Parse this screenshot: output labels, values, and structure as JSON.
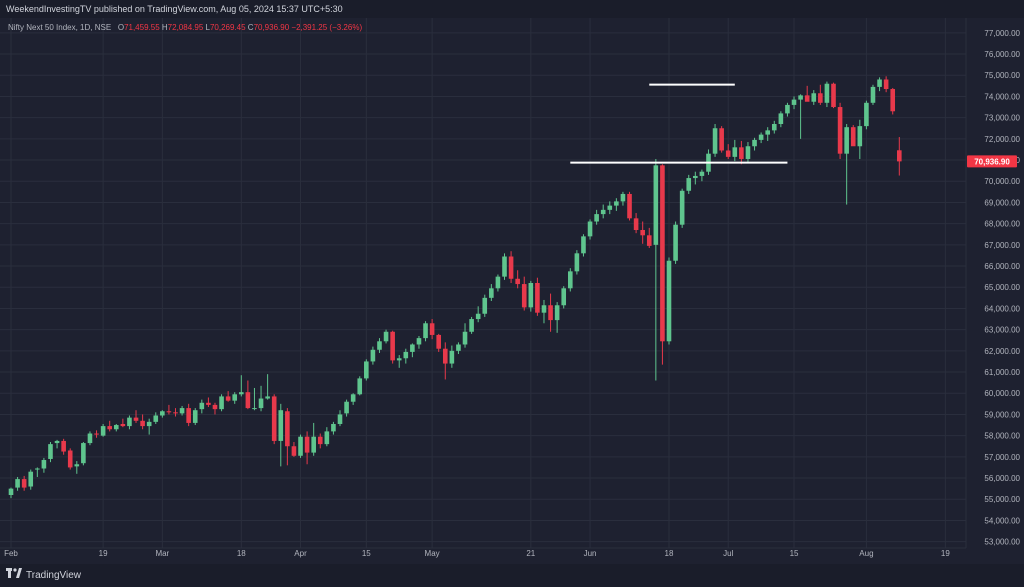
{
  "header": {
    "published_text": "WeekendInvestingTV published on TradingView.com, Aug 05, 2024 15:37 UTC+5:30"
  },
  "legend": {
    "symbol": "Nifty Next 50 Index, 1D, NSE",
    "open_label": "O",
    "open_value": "71,459.55",
    "high_label": "H",
    "high_value": "72,084.95",
    "low_label": "L",
    "low_value": "70,269.45",
    "close_label": "C",
    "close_value": "70,936.90",
    "change_value": "−2,391.25 (−3.26%)"
  },
  "footer": {
    "brand": "TradingView"
  },
  "colors": {
    "background": "#1e2130",
    "up": "#26a69a",
    "up_body": "#5fc58e",
    "down": "#f23645",
    "down_body": "#e8394b",
    "grid": "#2a2e3d",
    "axis_text": "#b2b5be",
    "price_tag": "#f23645",
    "drawing_lines": "#ffffff"
  },
  "chart_data": {
    "type": "candlestick",
    "y_axis_ticks": [
      "77,000.00",
      "76,000.00",
      "75,000.00",
      "74,000.00",
      "73,000.00",
      "72,000.00",
      "71,000.00",
      "70,000.00",
      "69,000.00",
      "68,000.00",
      "67,000.00",
      "66,000.00",
      "65,000.00",
      "64,000.00",
      "63,000.00",
      "62,000.00",
      "61,000.00",
      "60,000.00",
      "59,000.00",
      "58,000.00",
      "57,000.00",
      "56,000.00",
      "55,000.00",
      "54,000.00",
      "53,000.00"
    ],
    "x_axis_ticks": [
      "Feb",
      "19",
      "Mar",
      "18",
      "Apr",
      "15",
      "May",
      "21",
      "Jun",
      "18",
      "Jul",
      "15",
      "Aug",
      "19"
    ],
    "ylim": [
      52700,
      77700
    ],
    "last_price_label": "70,936.90",
    "last_price": 70936.9,
    "horizontal_lines": [
      {
        "price": 74560,
        "from_index": 97,
        "to_index": 110
      },
      {
        "price": 70880,
        "from_index": 85,
        "to_index": 118
      }
    ],
    "ohlc": [
      [
        55200,
        55550,
        55050,
        55500
      ],
      [
        55550,
        56050,
        55400,
        55950
      ],
      [
        55950,
        56100,
        55400,
        55550
      ],
      [
        55600,
        56400,
        55450,
        56300
      ],
      [
        56400,
        56500,
        56050,
        56450
      ],
      [
        56450,
        56950,
        56250,
        56850
      ],
      [
        56900,
        57700,
        56750,
        57600
      ],
      [
        57650,
        57800,
        57400,
        57750
      ],
      [
        57750,
        57850,
        57100,
        57250
      ],
      [
        57300,
        57400,
        56400,
        56500
      ],
      [
        56550,
        56800,
        56200,
        56650
      ],
      [
        56700,
        57700,
        56600,
        57650
      ],
      [
        57650,
        58200,
        57550,
        58100
      ],
      [
        58100,
        58250,
        57900,
        58050
      ],
      [
        58000,
        58550,
        57950,
        58450
      ],
      [
        58450,
        58700,
        58200,
        58300
      ],
      [
        58300,
        58550,
        58200,
        58500
      ],
      [
        58550,
        58800,
        58400,
        58450
      ],
      [
        58450,
        58950,
        58300,
        58850
      ],
      [
        58850,
        59200,
        58600,
        58700
      ],
      [
        58700,
        59000,
        58300,
        58450
      ],
      [
        58450,
        58800,
        58050,
        58650
      ],
      [
        58650,
        59100,
        58550,
        58950
      ],
      [
        58950,
        59200,
        58850,
        59150
      ],
      [
        59150,
        59450,
        59000,
        59100
      ],
      [
        59100,
        59300,
        58900,
        59050
      ],
      [
        59050,
        59400,
        58950,
        59300
      ],
      [
        59300,
        59500,
        58450,
        58600
      ],
      [
        58600,
        59300,
        58500,
        59200
      ],
      [
        59250,
        59700,
        59050,
        59550
      ],
      [
        59550,
        59800,
        59350,
        59450
      ],
      [
        59450,
        59550,
        59000,
        59250
      ],
      [
        59250,
        59950,
        59150,
        59850
      ],
      [
        59850,
        60100,
        59600,
        59650
      ],
      [
        59650,
        60050,
        59500,
        59950
      ],
      [
        59950,
        60850,
        59850,
        60050
      ],
      [
        60050,
        60600,
        59250,
        59300
      ],
      [
        59300,
        60250,
        59200,
        59300
      ],
      [
        59300,
        60350,
        59150,
        59750
      ],
      [
        59750,
        60900,
        59700,
        59850
      ],
      [
        59850,
        59950,
        57600,
        57750
      ],
      [
        57750,
        59500,
        56550,
        59200
      ],
      [
        59150,
        59300,
        56600,
        57500
      ],
      [
        57500,
        57700,
        57000,
        57050
      ],
      [
        57050,
        58050,
        56950,
        57950
      ],
      [
        57950,
        58200,
        56650,
        57200
      ],
      [
        57200,
        58600,
        57050,
        57950
      ],
      [
        57950,
        58100,
        57400,
        57600
      ],
      [
        57600,
        58400,
        57500,
        58200
      ],
      [
        58200,
        58650,
        58050,
        58550
      ],
      [
        58550,
        59200,
        58450,
        59000
      ],
      [
        59050,
        59700,
        58900,
        59600
      ],
      [
        59600,
        60000,
        59450,
        59950
      ],
      [
        59950,
        60800,
        59900,
        60700
      ],
      [
        60700,
        61600,
        60600,
        61500
      ],
      [
        61500,
        62200,
        61350,
        62050
      ],
      [
        62050,
        62600,
        61900,
        62450
      ],
      [
        62450,
        63000,
        62350,
        62900
      ],
      [
        62900,
        62950,
        61400,
        61550
      ],
      [
        61550,
        61800,
        61200,
        61650
      ],
      [
        61650,
        62100,
        61400,
        61950
      ],
      [
        61950,
        62350,
        61700,
        62300
      ],
      [
        62300,
        62700,
        62100,
        62600
      ],
      [
        62600,
        63400,
        62450,
        63300
      ],
      [
        63300,
        63500,
        62550,
        62750
      ],
      [
        62750,
        62800,
        61950,
        62100
      ],
      [
        62100,
        62400,
        60650,
        61400
      ],
      [
        61400,
        62250,
        61200,
        62000
      ],
      [
        62000,
        62400,
        61850,
        62300
      ],
      [
        62300,
        63300,
        62150,
        62900
      ],
      [
        62900,
        63600,
        62800,
        63500
      ],
      [
        63500,
        64100,
        63350,
        63750
      ],
      [
        63750,
        64650,
        63600,
        64500
      ],
      [
        64500,
        65150,
        64350,
        64950
      ],
      [
        64950,
        65600,
        64800,
        65500
      ],
      [
        65500,
        66600,
        65350,
        66450
      ],
      [
        66450,
        66700,
        65200,
        65400
      ],
      [
        65400,
        65800,
        64950,
        65150
      ],
      [
        65150,
        65500,
        63900,
        64050
      ],
      [
        64050,
        65300,
        63850,
        65200
      ],
      [
        65200,
        65450,
        63650,
        63800
      ],
      [
        63800,
        64400,
        63300,
        64150
      ],
      [
        64150,
        64700,
        62900,
        63450
      ],
      [
        63450,
        64300,
        62850,
        64150
      ],
      [
        64150,
        65050,
        64000,
        64950
      ],
      [
        64950,
        65900,
        64800,
        65750
      ],
      [
        65750,
        66750,
        65600,
        66600
      ],
      [
        66600,
        67500,
        66450,
        67400
      ],
      [
        67400,
        68200,
        67250,
        68100
      ],
      [
        68100,
        68650,
        67950,
        68450
      ],
      [
        68450,
        68900,
        68250,
        68650
      ],
      [
        68650,
        69050,
        68450,
        68850
      ],
      [
        68850,
        69200,
        68600,
        69050
      ],
      [
        69050,
        69500,
        68850,
        69400
      ],
      [
        69400,
        69500,
        68150,
        68250
      ],
      [
        68250,
        68500,
        67550,
        67700
      ],
      [
        67700,
        68100,
        67050,
        67450
      ],
      [
        67450,
        67800,
        66850,
        66950
      ],
      [
        67000,
        71050,
        60600,
        70750
      ],
      [
        70750,
        70800,
        61350,
        62450
      ],
      [
        62450,
        66400,
        62300,
        66250
      ],
      [
        66250,
        68100,
        66100,
        67950
      ],
      [
        67950,
        69650,
        67800,
        69550
      ],
      [
        69550,
        70300,
        69400,
        70150
      ],
      [
        70150,
        70450,
        69850,
        70250
      ],
      [
        70250,
        70550,
        70000,
        70450
      ],
      [
        70450,
        71500,
        70300,
        71300
      ],
      [
        71300,
        72700,
        71150,
        72500
      ],
      [
        72500,
        72600,
        71350,
        71450
      ],
      [
        71450,
        71750,
        71050,
        71150
      ],
      [
        71150,
        71950,
        70950,
        71600
      ],
      [
        71600,
        71900,
        70800,
        71050
      ],
      [
        71050,
        71850,
        70850,
        71650
      ],
      [
        71650,
        72050,
        71450,
        71950
      ],
      [
        71950,
        72300,
        71800,
        72200
      ],
      [
        72200,
        72550,
        71900,
        72400
      ],
      [
        72400,
        72850,
        72250,
        72700
      ],
      [
        72700,
        73300,
        72550,
        73200
      ],
      [
        73200,
        73700,
        73050,
        73600
      ],
      [
        73600,
        74000,
        73400,
        73850
      ],
      [
        73850,
        74100,
        72000,
        74050
      ],
      [
        74050,
        74500,
        73800,
        73750
      ],
      [
        73750,
        74300,
        73600,
        74150
      ],
      [
        74150,
        74550,
        73600,
        73700
      ],
      [
        73700,
        74700,
        73500,
        74600
      ],
      [
        74600,
        74650,
        73450,
        73500
      ],
      [
        73500,
        73700,
        71050,
        71300
      ],
      [
        71300,
        72700,
        68900,
        72550
      ],
      [
        72550,
        72650,
        71800,
        71650
      ],
      [
        71650,
        72900,
        71050,
        72600
      ],
      [
        72600,
        73800,
        72450,
        73700
      ],
      [
        73700,
        74550,
        73600,
        74450
      ],
      [
        74450,
        74900,
        74250,
        74800
      ],
      [
        74800,
        74950,
        74200,
        74350
      ],
      [
        74350,
        74400,
        73150,
        73300
      ],
      [
        71460,
        72085,
        70269,
        70937
      ]
    ]
  }
}
